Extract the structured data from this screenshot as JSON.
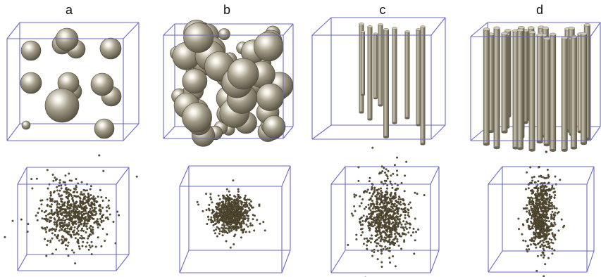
{
  "figure": {
    "panels": [
      {
        "label": "a",
        "structure": "sparse-spheres",
        "distribution": "diffuse-spherical-cloud"
      },
      {
        "label": "b",
        "structure": "dense-spheres",
        "distribution": "compact-spherical-cloud"
      },
      {
        "label": "c",
        "structure": "sparse-cylinders",
        "distribution": "elongated-cloud"
      },
      {
        "label": "d",
        "structure": "dense-cylinders",
        "distribution": "compact-elongated-cloud"
      }
    ],
    "colors": {
      "box_edge": "#6a6ac8",
      "object_fill": "#a39c88",
      "object_dark": "#5e5848",
      "object_highlight": "#ffffff",
      "point_fill": "#5a5036"
    }
  }
}
